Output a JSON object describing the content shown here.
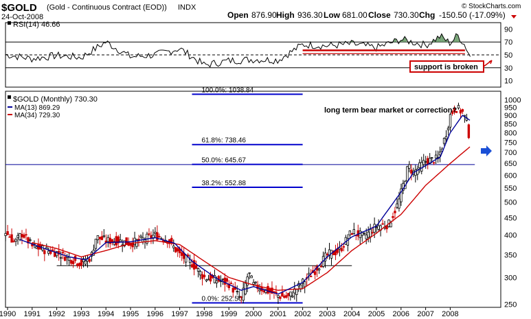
{
  "header": {
    "symbol": "$GOLD",
    "description": "(Gold - Continuous Contract (EOD))",
    "exchange": "INDX",
    "date": "24-Oct-2008",
    "open_label": "Open",
    "open": "876.90",
    "high_label": "High",
    "high": "936.30",
    "low_label": "Low",
    "low": "681.00",
    "close_label": "Close",
    "close": "730.30",
    "chg_label": "Chg",
    "chg": "-150.50 (-17.09%)",
    "watermark": "© StockCharts.com"
  },
  "colors": {
    "price_up": "#000000",
    "price_down": "#cc0000",
    "ma13": "#000099",
    "ma34": "#cc0000",
    "fib": "#0000cc",
    "annotation": "#0000cc",
    "support_line": "#cc0000",
    "rsi_fill": "#669966"
  },
  "chart_data": [
    {
      "type": "line",
      "panel": "indicator",
      "legend": "RSI(14) 46.66",
      "y_ticks": [
        10,
        30,
        50,
        70,
        90
      ],
      "ylim": [
        0,
        100
      ],
      "reference_lines": [
        30,
        50,
        70
      ],
      "x": [
        1990,
        1991,
        1992,
        1993,
        1994,
        1995,
        1996,
        1997,
        1998,
        1999,
        2000,
        2001,
        2002,
        2003,
        2004,
        2005,
        2006,
        2007,
        2007.6,
        2008,
        2008.3,
        2008.6,
        2008.82
      ],
      "values": [
        50,
        44,
        49,
        46,
        70,
        47,
        50,
        60,
        34,
        41,
        43,
        42,
        66,
        64,
        67,
        61,
        74,
        65,
        79,
        68,
        81,
        65,
        47
      ],
      "annotation": "support is broken"
    },
    {
      "type": "candlestick",
      "panel": "price",
      "title": "$GOLD (Monthly) 730.30",
      "legend": [
        {
          "name": "MA(13) 869.29",
          "color": "#000099"
        },
        {
          "name": "MA(34) 729.30",
          "color": "#cc0000"
        }
      ],
      "scale": "log",
      "ylim": [
        245,
        1060
      ],
      "y_ticks": [
        250,
        300,
        350,
        400,
        450,
        500,
        550,
        600,
        650,
        700,
        750,
        800,
        850,
        900,
        950,
        1000
      ],
      "x_ticks": [
        "1990",
        "1991",
        "1992",
        "1993",
        "1994",
        "1995",
        "1996",
        "1997",
        "1998",
        "1999",
        "2000",
        "2001",
        "2002",
        "2003",
        "2004",
        "2005",
        "2006",
        "2007",
        "2008"
      ],
      "price_keypoints": [
        [
          1989.9,
          410
        ],
        [
          1990.3,
          380
        ],
        [
          1990.6,
          405
        ],
        [
          1991.0,
          370
        ],
        [
          1991.5,
          362
        ],
        [
          1992.0,
          355
        ],
        [
          1992.5,
          342
        ],
        [
          1993.0,
          330
        ],
        [
          1993.4,
          345
        ],
        [
          1993.6,
          395
        ],
        [
          1994.0,
          385
        ],
        [
          1994.5,
          385
        ],
        [
          1995.0,
          378
        ],
        [
          1995.5,
          388
        ],
        [
          1996.0,
          400
        ],
        [
          1996.5,
          388
        ],
        [
          1997.0,
          350
        ],
        [
          1997.5,
          330
        ],
        [
          1998.0,
          300
        ],
        [
          1998.5,
          295
        ],
        [
          1999.0,
          288
        ],
        [
          1999.5,
          258
        ],
        [
          1999.8,
          310
        ],
        [
          2000.0,
          285
        ],
        [
          2000.5,
          275
        ],
        [
          2001.0,
          265
        ],
        [
          2001.4,
          262
        ],
        [
          2001.8,
          280
        ],
        [
          2002.0,
          290
        ],
        [
          2002.5,
          315
        ],
        [
          2003.0,
          350
        ],
        [
          2003.5,
          360
        ],
        [
          2004.0,
          410
        ],
        [
          2004.5,
          395
        ],
        [
          2005.0,
          425
        ],
        [
          2005.5,
          430
        ],
        [
          2005.9,
          500
        ],
        [
          2006.3,
          640
        ],
        [
          2006.5,
          610
        ],
        [
          2007.0,
          660
        ],
        [
          2007.5,
          670
        ],
        [
          2007.8,
          780
        ],
        [
          2008.0,
          900
        ],
        [
          2008.2,
          950
        ],
        [
          2008.5,
          920
        ],
        [
          2008.7,
          850
        ],
        [
          2008.82,
          730
        ]
      ],
      "ma13_keypoints": [
        [
          1990.5,
          388
        ],
        [
          1991.5,
          365
        ],
        [
          1992.5,
          345
        ],
        [
          1993.2,
          338
        ],
        [
          1994.0,
          380
        ],
        [
          1995.0,
          382
        ],
        [
          1996.0,
          393
        ],
        [
          1996.8,
          378
        ],
        [
          1997.5,
          335
        ],
        [
          1998.5,
          298
        ],
        [
          1999.5,
          275
        ],
        [
          2000.0,
          282
        ],
        [
          2001.0,
          268
        ],
        [
          2002.0,
          290
        ],
        [
          2003.0,
          345
        ],
        [
          2004.0,
          395
        ],
        [
          2005.0,
          425
        ],
        [
          2006.0,
          535
        ],
        [
          2006.5,
          610
        ],
        [
          2007.0,
          640
        ],
        [
          2007.6,
          680
        ],
        [
          2008.0,
          800
        ],
        [
          2008.5,
          900
        ],
        [
          2008.82,
          869
        ]
      ],
      "ma34_keypoints": [
        [
          1991.0,
          380
        ],
        [
          1992.0,
          365
        ],
        [
          1993.0,
          345
        ],
        [
          1994.0,
          360
        ],
        [
          1995.0,
          378
        ],
        [
          1996.0,
          385
        ],
        [
          1997.0,
          375
        ],
        [
          1998.0,
          335
        ],
        [
          1999.0,
          300
        ],
        [
          2000.0,
          285
        ],
        [
          2001.0,
          275
        ],
        [
          2002.0,
          278
        ],
        [
          2003.0,
          310
        ],
        [
          2004.0,
          360
        ],
        [
          2005.0,
          405
        ],
        [
          2006.0,
          460
        ],
        [
          2007.0,
          560
        ],
        [
          2008.0,
          650
        ],
        [
          2008.82,
          729
        ]
      ],
      "horizontal_lines": [
        {
          "value": 645,
          "from_year": 1989.9,
          "to_year": 2009.0,
          "color": "#000099",
          "width": 1
        },
        {
          "value": 325,
          "from_year": 1992.0,
          "to_year": 2004.0,
          "color": "#000000",
          "width": 1
        }
      ],
      "fibonacci": [
        {
          "label": "100.0%: 1038.84",
          "value": 1038.84
        },
        {
          "label": "61.8%: 738.46",
          "value": 738.46
        },
        {
          "label": "50.0%: 645.67",
          "value": 645.67
        },
        {
          "label": "38.2%: 552.88",
          "value": 552.88
        },
        {
          "label": "0.0%: 252.50",
          "value": 252.5
        }
      ],
      "fib_range": [
        1997.5,
        2002.0
      ],
      "annotation": "long term bear market or correction?"
    }
  ]
}
